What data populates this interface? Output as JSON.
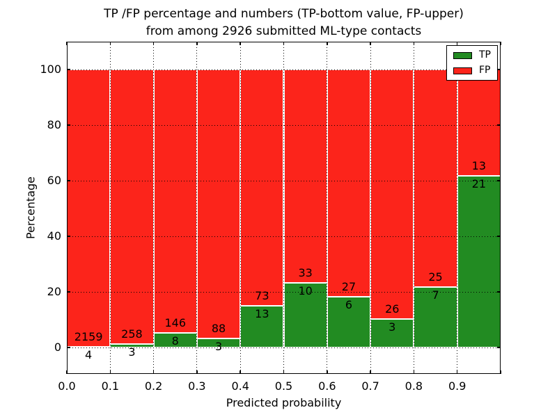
{
  "chart_data": {
    "type": "bar",
    "stacked": true,
    "normalized_to_100_percent": true,
    "title": "TP /FP percentage and numbers (TP-bottom value, FP-upper)\nfrom among 2926 submitted ML-type contacts",
    "total_contacts": 2926,
    "xlabel": "Predicted probability",
    "ylabel": "Percentage",
    "bin_edges": [
      0.0,
      0.1,
      0.2,
      0.3,
      0.4,
      0.5,
      0.6,
      0.7,
      0.8,
      0.9,
      1.0
    ],
    "xtick_labels": [
      "0.0",
      "0.1",
      "0.2",
      "0.3",
      "0.4",
      "0.5",
      "0.6",
      "0.7",
      "0.8",
      "0.9"
    ],
    "yticks": [
      0,
      20,
      40,
      60,
      80,
      100
    ],
    "ylim": [
      -9.5,
      110
    ],
    "xlim": [
      0,
      1
    ],
    "grid": true,
    "grid_style": "dotted",
    "series": [
      {
        "name": "TP",
        "color": "#228b22",
        "values": [
          4,
          3,
          8,
          3,
          13,
          10,
          6,
          3,
          7,
          21
        ]
      },
      {
        "name": "FP",
        "color": "#fc241b",
        "values": [
          2159,
          258,
          146,
          88,
          73,
          33,
          27,
          26,
          25,
          13
        ]
      }
    ],
    "tp_percent_per_bin": [
      0.18,
      1.15,
      5.19,
      3.3,
      15.12,
      23.26,
      18.18,
      10.34,
      21.88,
      61.76
    ],
    "legend": [
      {
        "label": "TP",
        "color": "#228b22"
      },
      {
        "label": "FP",
        "color": "#fc241b"
      }
    ],
    "legend_position": "upper right",
    "colors": {
      "tp": "#228b22",
      "fp": "#fc241b",
      "background": "#ffffff",
      "text": "#000000"
    }
  }
}
